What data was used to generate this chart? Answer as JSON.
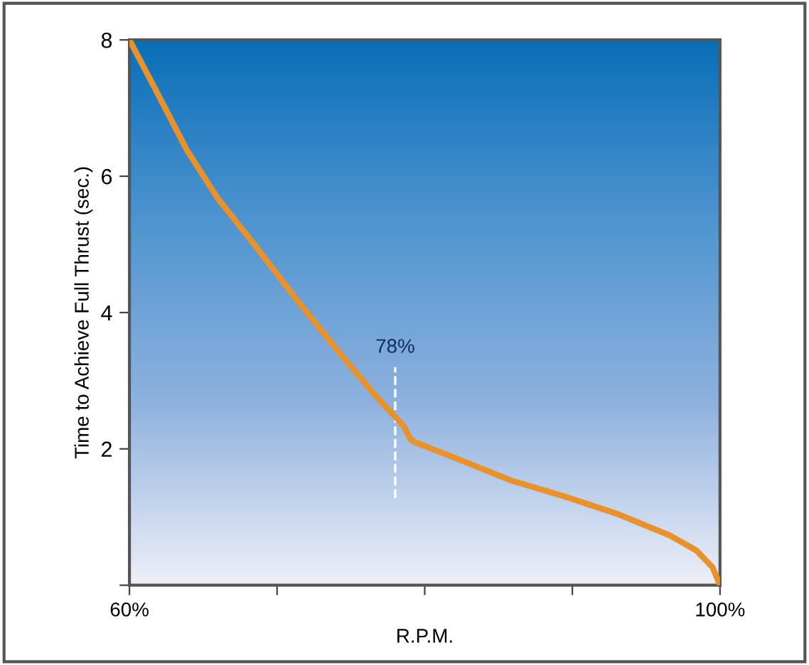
{
  "chart_data": {
    "type": "line",
    "xlabel": "R.P.M.",
    "ylabel": "Time to Achieve Full Thrust (sec.)",
    "xlim": [
      60,
      100
    ],
    "ylim": [
      0,
      8
    ],
    "xticks": [
      {
        "value": 60,
        "label": "60%"
      },
      {
        "value": 70,
        "label": null
      },
      {
        "value": 80,
        "label": null
      },
      {
        "value": 90,
        "label": null
      },
      {
        "value": 100,
        "label": "100%"
      }
    ],
    "yticks": [
      {
        "value": 0,
        "label": null
      },
      2,
      4,
      6,
      8
    ],
    "grid": false,
    "marker": "none",
    "line_style": "solid",
    "ref_lines": [
      {
        "axis": "x",
        "value": 78,
        "label": "78%",
        "color": "#ffffff",
        "line_style": "dashed"
      }
    ],
    "series": [
      {
        "color": "#e8922e",
        "x": [
          60,
          61.7,
          63.9,
          66.0,
          68.6,
          71.4,
          74.3,
          76.8,
          78.6,
          79.0,
          79.3,
          82.5,
          85.8,
          89.5,
          93.0,
          96.6,
          98.4,
          99.5,
          100
        ],
        "values": [
          8.0,
          7.3,
          6.38,
          5.67,
          4.96,
          4.17,
          3.39,
          2.75,
          2.33,
          2.15,
          2.1,
          1.83,
          1.54,
          1.3,
          1.05,
          0.73,
          0.51,
          0.26,
          0
        ]
      }
    ]
  }
}
